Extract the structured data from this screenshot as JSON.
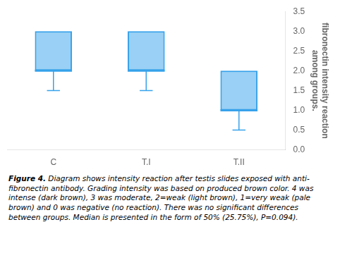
{
  "chart_data": {
    "type": "box",
    "categories": [
      "C",
      "T.I",
      "T.II"
    ],
    "values": [
      {
        "q1": 2.0,
        "median": 2.0,
        "q3": 3.0,
        "whisker_low": 1.5
      },
      {
        "q1": 2.0,
        "median": 2.0,
        "q3": 3.0,
        "whisker_low": 1.5
      },
      {
        "q1": 1.0,
        "median": 1.0,
        "q3": 2.0,
        "whisker_low": 0.5
      }
    ],
    "ylabel": "fibronectin intensity reaction\namong groups.",
    "ylim": [
      0,
      3.5
    ],
    "yticks": [
      {
        "value": 0,
        "label": "0.0"
      },
      0.5,
      {
        "value": 1.0,
        "label": "1.0"
      },
      1.5,
      {
        "value": 2.0,
        "label": "2.0"
      },
      2.5,
      {
        "value": 3.0,
        "label": "3.0"
      },
      3.5
    ],
    "grid": false,
    "annotations": [
      "Figure 4.",
      "Diagram shows intensity reaction after testis slides exposed with anti-fibronectin antibody. Grading intensity was based on produced brown color. 4 was intense (dark brown), 3 was moderate, 2=weak (light brown), 1=very weak (pale brown) and 0 was negative (no reaction). There was no significant differences between groups. Median is presented in the form of 50% (25.75%), P=0.094)."
    ]
  }
}
